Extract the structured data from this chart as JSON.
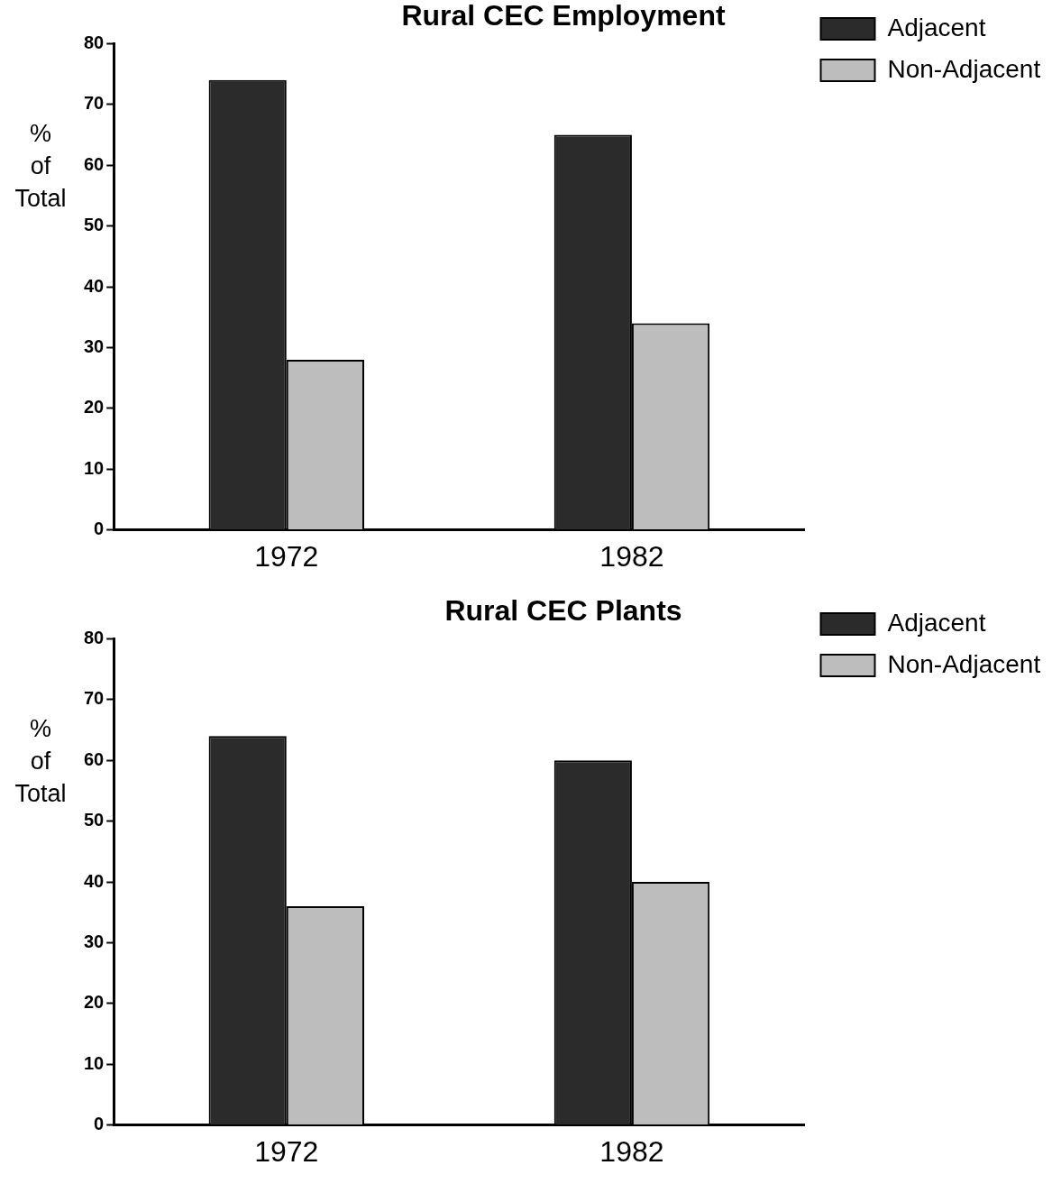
{
  "chart_data": [
    {
      "type": "bar",
      "title": "Rural CEC Employment",
      "ylabel": "% of Total",
      "categories": [
        "1972",
        "1982"
      ],
      "series": [
        {
          "name": "Adjacent",
          "color": "#2b2b2b",
          "values": [
            74,
            65
          ]
        },
        {
          "name": "Non-Adjacent",
          "color": "#bdbdbd",
          "values": [
            28,
            34
          ]
        }
      ],
      "ylim": [
        0,
        80
      ],
      "yticks": [
        0,
        10,
        20,
        30,
        40,
        50,
        60,
        70,
        80
      ],
      "grid": false,
      "legend": "top right"
    },
    {
      "type": "bar",
      "title": "Rural CEC Plants",
      "ylabel": "% of Total",
      "categories": [
        "1972",
        "1982"
      ],
      "series": [
        {
          "name": "Adjacent",
          "color": "#2b2b2b",
          "values": [
            64,
            60
          ]
        },
        {
          "name": "Non-Adjacent",
          "color": "#bdbdbd",
          "values": [
            36,
            40
          ]
        }
      ],
      "ylim": [
        0,
        80
      ],
      "yticks": [
        0,
        10,
        20,
        30,
        40,
        50,
        60,
        70,
        80
      ],
      "grid": false,
      "legend": "top right"
    }
  ]
}
